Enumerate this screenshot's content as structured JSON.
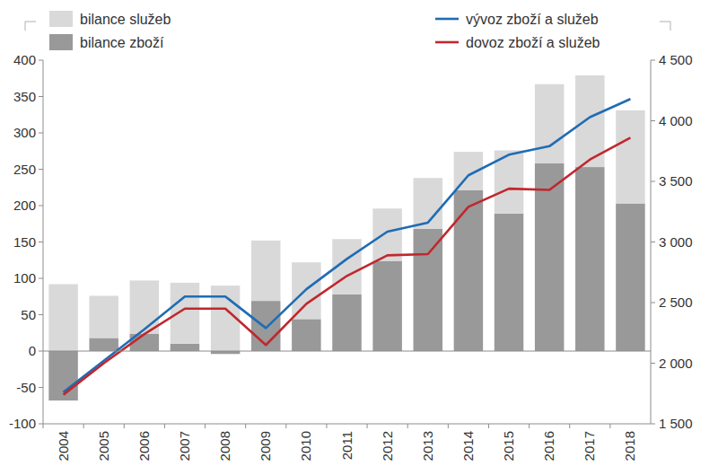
{
  "chart_data": {
    "type": "bar",
    "stacked": true,
    "legend": "top",
    "grid": false,
    "categories": [
      "2004",
      "2005",
      "2006",
      "2007",
      "2008",
      "2009",
      "2010",
      "2011",
      "2012",
      "2013",
      "2014",
      "2015",
      "2016",
      "2017",
      "2018"
    ],
    "ylim": [
      -100,
      400
    ],
    "yticks": [
      -100,
      -50,
      0,
      50,
      100,
      150,
      200,
      250,
      300,
      350,
      400
    ],
    "y2lim": [
      1500,
      4500
    ],
    "y2ticks": [
      {
        "value": 1500,
        "label": "1 500"
      },
      {
        "value": 2000,
        "label": "2 000"
      },
      {
        "value": 2500,
        "label": "2 500"
      },
      {
        "value": 3000,
        "label": "3 000"
      },
      {
        "value": 3500,
        "label": "3 500"
      },
      {
        "value": 4000,
        "label": "4 000"
      },
      {
        "value": 4500,
        "label": "4 500"
      }
    ],
    "series": [
      {
        "name": "bilance služeb",
        "type": "bar",
        "color": "#d9d9d9",
        "values": [
          92,
          58,
          73,
          84,
          90,
          83,
          78,
          76,
          72,
          70,
          53,
          87,
          109,
          126,
          128
        ]
      },
      {
        "name": "bilance zboží",
        "type": "bar",
        "color": "#999999",
        "values": [
          -68,
          18,
          24,
          10,
          -4,
          69,
          44,
          78,
          124,
          168,
          221,
          189,
          258,
          253,
          203
        ]
      },
      {
        "name": "vývoz zboží a služeb",
        "type": "line",
        "axis": "y2",
        "color": "#1f6cb4",
        "values": [
          1760,
          2020,
          2280,
          2550,
          2550,
          2290,
          2610,
          2860,
          3085,
          3160,
          3550,
          3720,
          3790,
          4030,
          4180
        ]
      },
      {
        "name": "dovoz zboží a služeb",
        "type": "line",
        "axis": "y2",
        "color": "#c1272d",
        "values": [
          1740,
          2000,
          2240,
          2450,
          2450,
          2150,
          2490,
          2720,
          2890,
          2900,
          3290,
          3440,
          3430,
          3680,
          3860
        ]
      }
    ]
  }
}
